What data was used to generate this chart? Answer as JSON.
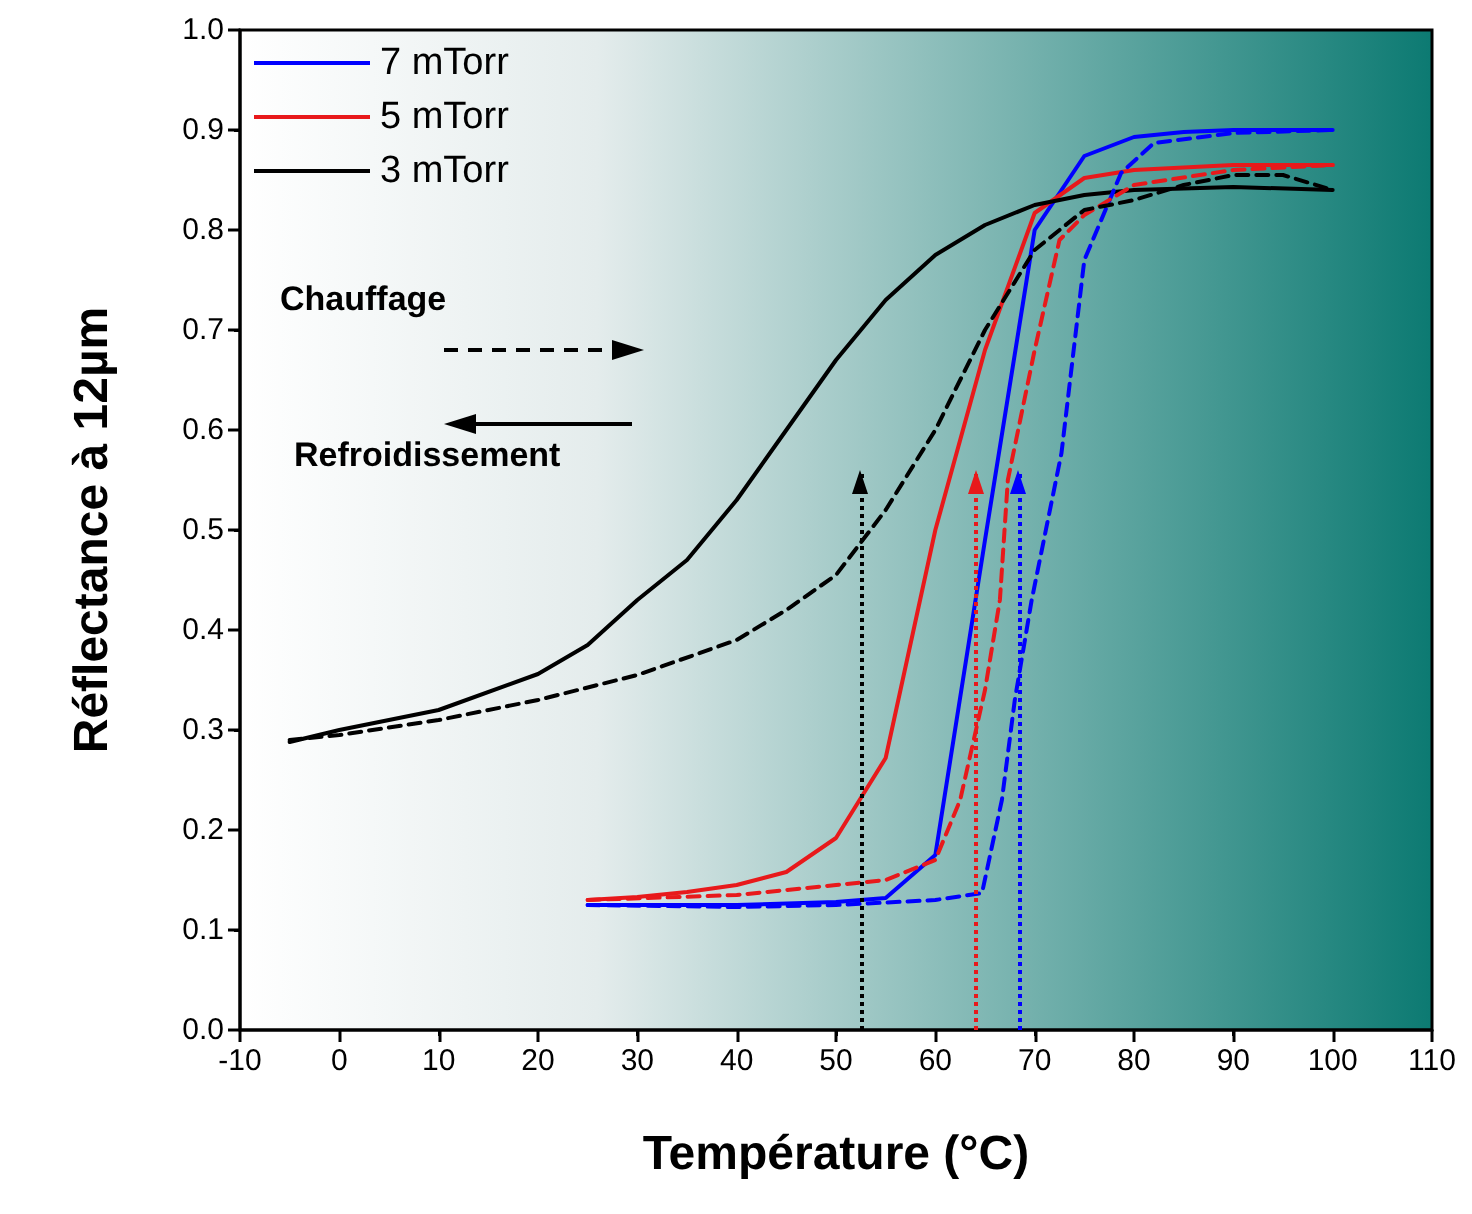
{
  "chart_data": {
    "type": "line",
    "xlabel": "Température (°C)",
    "ylabel": "Réflectance à 12µm",
    "xlim": [
      -10,
      110
    ],
    "xticks": [
      -10,
      0,
      10,
      20,
      30,
      40,
      50,
      60,
      70,
      80,
      90,
      100,
      110
    ],
    "ylim": [
      0,
      1
    ],
    "yticks": [
      {
        "value": 0,
        "label": "0.0"
      },
      {
        "value": 0.1,
        "label": "0.1"
      },
      {
        "value": 0.2,
        "label": "0.2"
      },
      {
        "value": 0.3,
        "label": "0.3"
      },
      {
        "value": 0.4,
        "label": "0.4"
      },
      {
        "value": 0.5,
        "label": "0.5"
      },
      {
        "value": 0.6,
        "label": "0.6"
      },
      {
        "value": 0.7,
        "label": "0.7"
      },
      {
        "value": 0.8,
        "label": "0.8"
      },
      {
        "value": 0.9,
        "label": "0.9"
      },
      {
        "value": 1,
        "label": "1.0"
      }
    ],
    "grid": false,
    "legend": "top left",
    "marker": "none",
    "series": [
      {
        "name": "7 mTorr",
        "color": "#0000ff",
        "line_style": "solid",
        "x": [
          25,
          40,
          50,
          55,
          60,
          65,
          70,
          75,
          80,
          85,
          90,
          100
        ],
        "values": [
          0.125,
          0.125,
          0.128,
          0.132,
          0.175,
          0.49,
          0.8,
          0.874,
          0.893,
          0.898,
          0.9,
          0.9
        ]
      },
      {
        "name": "5 mTorr",
        "color": "#e8191b",
        "line_style": "solid",
        "x": [
          25,
          30,
          35,
          40,
          45,
          50,
          55,
          60,
          65,
          70,
          75,
          80,
          90,
          100
        ],
        "values": [
          0.13,
          0.133,
          0.138,
          0.145,
          0.158,
          0.192,
          0.272,
          0.5,
          0.68,
          0.817,
          0.852,
          0.86,
          0.865,
          0.865
        ]
      },
      {
        "name": "3 mTorr",
        "color": "#000000",
        "line_style": "solid",
        "x": [
          -5,
          0,
          10,
          20,
          25,
          30,
          35,
          40,
          45,
          50,
          55,
          60,
          65,
          70,
          75,
          80,
          90,
          100
        ],
        "values": [
          0.288,
          0.3,
          0.32,
          0.356,
          0.385,
          0.43,
          0.47,
          0.53,
          0.6,
          0.67,
          0.73,
          0.775,
          0.805,
          0.825,
          0.835,
          0.84,
          0.843,
          0.84
        ]
      },
      {
        "color": "#0000ff",
        "line_style": "dashed",
        "x": [
          25,
          40,
          50,
          60,
          64.7,
          66.7,
          68,
          69.7,
          72.7,
          75,
          78.7,
          82,
          90,
          100
        ],
        "values": [
          0.125,
          0.123,
          0.125,
          0.13,
          0.137,
          0.23,
          0.33,
          0.43,
          0.577,
          0.77,
          0.857,
          0.887,
          0.897,
          0.9
        ]
      },
      {
        "color": "#e8191b",
        "line_style": "dashed",
        "x": [
          25,
          40,
          50,
          55,
          60,
          62.5,
          65,
          66.5,
          67.3,
          70,
          72.5,
          75,
          80,
          90,
          100
        ],
        "values": [
          0.13,
          0.135,
          0.145,
          0.15,
          0.17,
          0.23,
          0.34,
          0.43,
          0.55,
          0.68,
          0.79,
          0.815,
          0.845,
          0.86,
          0.865
        ]
      },
      {
        "color": "#000000",
        "line_style": "dashed",
        "x": [
          -5,
          0,
          10,
          20,
          30,
          40,
          45,
          50,
          55,
          60,
          65,
          70,
          75,
          80,
          85,
          90,
          95,
          100
        ],
        "values": [
          0.29,
          0.295,
          0.31,
          0.33,
          0.355,
          0.39,
          0.42,
          0.455,
          0.52,
          0.6,
          0.7,
          0.78,
          0.82,
          0.83,
          0.845,
          0.855,
          0.855,
          0.84
        ]
      }
    ],
    "ref_lines": [
      {
        "axis": "x",
        "value": 52.5,
        "color": "#000000",
        "line_style": "dotted"
      },
      {
        "axis": "x",
        "value": 64.1,
        "color": "#e8191b",
        "line_style": "dotted"
      },
      {
        "axis": "x",
        "value": 68.4,
        "color": "#0000ff",
        "line_style": "dotted"
      }
    ],
    "annotations": [
      "Chauffage",
      "Refroidissement"
    ]
  }
}
